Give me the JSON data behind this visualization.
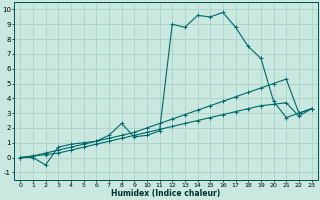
{
  "title": "",
  "xlabel": "Humidex (Indice chaleur)",
  "bg_color": "#c8e8e0",
  "grid_color": "#a8ccc8",
  "line_color": "#006868",
  "xlim": [
    -0.5,
    23.5
  ],
  "ylim": [
    -1.5,
    10.5
  ],
  "xticks": [
    0,
    1,
    2,
    3,
    4,
    5,
    6,
    7,
    8,
    9,
    10,
    11,
    12,
    13,
    14,
    15,
    16,
    17,
    18,
    19,
    20,
    21,
    22,
    23
  ],
  "yticks": [
    -1,
    0,
    1,
    2,
    3,
    4,
    5,
    6,
    7,
    8,
    9,
    10
  ],
  "series1_x": [
    0,
    1,
    2,
    3,
    4,
    5,
    6,
    7,
    8,
    9,
    10,
    11,
    12,
    13,
    14,
    15,
    16,
    17,
    18,
    19,
    20,
    21,
    22,
    23
  ],
  "series1_y": [
    0.0,
    0.0,
    -0.5,
    0.7,
    0.9,
    1.0,
    1.1,
    1.5,
    2.3,
    1.4,
    1.5,
    1.8,
    9.0,
    8.8,
    9.6,
    9.5,
    9.8,
    8.8,
    7.5,
    6.7,
    3.8,
    2.7,
    3.0,
    3.3
  ],
  "series2_x": [
    0,
    1,
    2,
    3,
    4,
    5,
    6,
    7,
    8,
    9,
    10,
    11,
    12,
    13,
    14,
    15,
    16,
    17,
    18,
    19,
    20,
    21,
    22,
    23
  ],
  "series2_y": [
    0.0,
    0.1,
    0.2,
    0.3,
    0.5,
    0.7,
    0.9,
    1.1,
    1.3,
    1.5,
    1.7,
    1.9,
    2.1,
    2.3,
    2.5,
    2.7,
    2.9,
    3.1,
    3.3,
    3.5,
    3.6,
    3.7,
    2.8,
    3.3
  ],
  "series3_x": [
    0,
    1,
    2,
    3,
    4,
    5,
    6,
    7,
    8,
    9,
    10,
    11,
    12,
    13,
    14,
    15,
    16,
    17,
    18,
    19,
    20,
    21,
    22,
    23
  ],
  "series3_y": [
    0.0,
    0.1,
    0.3,
    0.5,
    0.7,
    0.9,
    1.1,
    1.3,
    1.5,
    1.7,
    2.0,
    2.3,
    2.6,
    2.9,
    3.2,
    3.5,
    3.8,
    4.1,
    4.4,
    4.7,
    5.0,
    5.3,
    3.0,
    3.3
  ]
}
